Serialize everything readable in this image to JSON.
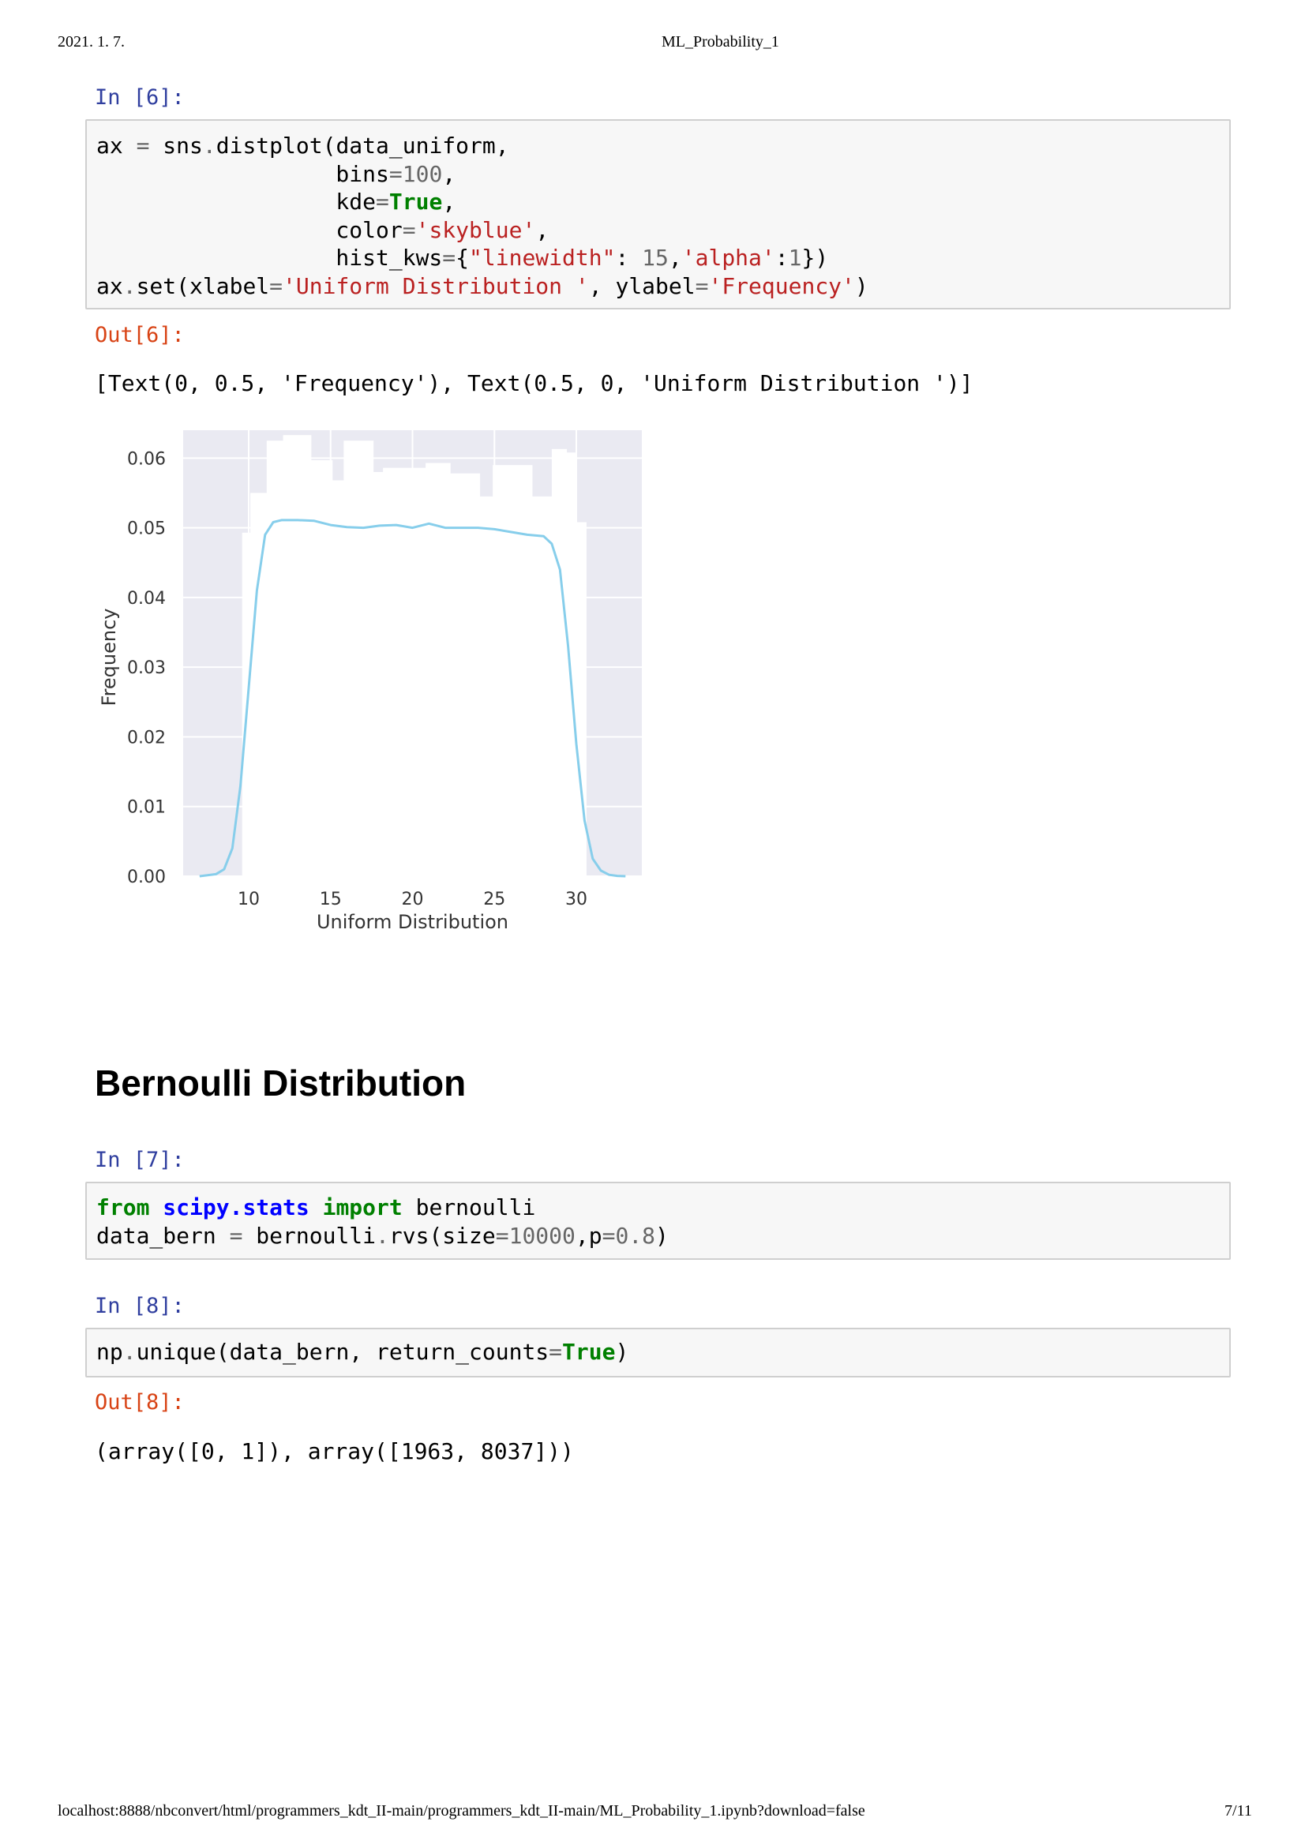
{
  "page_header": {
    "date": "2021. 1. 7.",
    "title": "ML_Probability_1"
  },
  "cells": {
    "in6": {
      "prompt": "In [6]:",
      "code": [
        [
          [
            "ax ",
            ""
          ],
          [
            "=",
            "o"
          ],
          [
            " sns",
            ""
          ],
          [
            ".",
            "o"
          ],
          [
            "distplot(data_uniform,",
            ""
          ]
        ],
        [
          [
            "                  bins",
            ""
          ],
          [
            "=",
            "o"
          ],
          [
            "100",
            "n"
          ],
          [
            ",",
            ""
          ]
        ],
        [
          [
            "                  kde",
            ""
          ],
          [
            "=",
            "o"
          ],
          [
            "True",
            "k"
          ],
          [
            ",",
            ""
          ]
        ],
        [
          [
            "                  color",
            ""
          ],
          [
            "=",
            "o"
          ],
          [
            "'skyblue'",
            "s"
          ],
          [
            ",",
            ""
          ]
        ],
        [
          [
            "                  hist_kws",
            ""
          ],
          [
            "=",
            "o"
          ],
          [
            "{",
            ""
          ],
          [
            "\"linewidth\"",
            "s"
          ],
          [
            ": ",
            ""
          ],
          [
            "15",
            "n"
          ],
          [
            ",",
            ""
          ],
          [
            "'alpha'",
            "s"
          ],
          [
            ":",
            ""
          ],
          [
            "1",
            "n"
          ],
          [
            "})",
            ""
          ]
        ],
        [
          [
            "ax",
            ""
          ],
          [
            ".",
            "o"
          ],
          [
            "set(xlabel",
            ""
          ],
          [
            "=",
            "o"
          ],
          [
            "'Uniform Distribution '",
            "s"
          ],
          [
            ", ylabel",
            ""
          ],
          [
            "=",
            "o"
          ],
          [
            "'Frequency'",
            "s"
          ],
          [
            ")",
            ""
          ]
        ]
      ]
    },
    "out6": {
      "prompt": "Out[6]:",
      "text": "[Text(0, 0.5, 'Frequency'), Text(0.5, 0, 'Uniform Distribution ')]"
    },
    "section_title": "Bernoulli Distribution",
    "in7": {
      "prompt": "In [7]:",
      "code": [
        [
          [
            "from",
            "k"
          ],
          [
            " ",
            ""
          ],
          [
            "scipy.stats",
            "nn"
          ],
          [
            " ",
            ""
          ],
          [
            "import",
            "k"
          ],
          [
            " bernoulli",
            ""
          ]
        ],
        [
          [
            "data_bern ",
            ""
          ],
          [
            "=",
            "o"
          ],
          [
            " bernoulli",
            ""
          ],
          [
            ".",
            "o"
          ],
          [
            "rvs(size",
            ""
          ],
          [
            "=",
            "o"
          ],
          [
            "10000",
            "n"
          ],
          [
            ",p",
            ""
          ],
          [
            "=",
            "o"
          ],
          [
            "0.8",
            "n"
          ],
          [
            ")",
            ""
          ]
        ]
      ]
    },
    "in8": {
      "prompt": "In [8]:",
      "code": [
        [
          [
            "np",
            ""
          ],
          [
            ".",
            "o"
          ],
          [
            "unique(data_bern, return_counts",
            ""
          ],
          [
            "=",
            "o"
          ],
          [
            "True",
            "k"
          ],
          [
            ")",
            ""
          ]
        ]
      ]
    },
    "out8": {
      "prompt": "Out[8]:",
      "text": "(array([0, 1]), array([1963, 8037]))"
    }
  },
  "chart_data": {
    "type": "histogram_kde",
    "xlabel": "Uniform Distribution",
    "ylabel": "Frequency",
    "xlim": [
      6,
      34
    ],
    "ylim": [
      0,
      0.064
    ],
    "xticks": [
      "10",
      "15",
      "20",
      "25",
      "30"
    ],
    "yticks": [
      "0.00",
      "0.01",
      "0.02",
      "0.03",
      "0.04",
      "0.05",
      "0.06"
    ],
    "grid": true,
    "colors": {
      "background": "#eaeaf2",
      "hist": "#ffffff",
      "kde": "#87ceeb",
      "grid": "#ffffff"
    },
    "hist_bins": [
      {
        "x0": 9.6,
        "x1": 10.1,
        "y": 0.0493
      },
      {
        "x0": 10.1,
        "x1": 11.1,
        "y": 0.055
      },
      {
        "x0": 11.1,
        "x1": 12.1,
        "y": 0.0625
      },
      {
        "x0": 12.1,
        "x1": 13.8,
        "y": 0.0633
      },
      {
        "x0": 13.8,
        "x1": 15.1,
        "y": 0.0597
      },
      {
        "x0": 15.1,
        "x1": 15.8,
        "y": 0.0568
      },
      {
        "x0": 15.8,
        "x1": 17.6,
        "y": 0.0625
      },
      {
        "x0": 17.6,
        "x1": 18.2,
        "y": 0.058
      },
      {
        "x0": 18.2,
        "x1": 20.8,
        "y": 0.0586
      },
      {
        "x0": 20.8,
        "x1": 22.3,
        "y": 0.0593
      },
      {
        "x0": 22.3,
        "x1": 24.1,
        "y": 0.0578
      },
      {
        "x0": 24.1,
        "x1": 24.9,
        "y": 0.0545
      },
      {
        "x0": 24.9,
        "x1": 27.3,
        "y": 0.059
      },
      {
        "x0": 27.3,
        "x1": 28.5,
        "y": 0.0545
      },
      {
        "x0": 28.5,
        "x1": 29.4,
        "y": 0.0613
      },
      {
        "x0": 29.4,
        "x1": 30.0,
        "y": 0.0608
      },
      {
        "x0": 30.0,
        "x1": 30.6,
        "y": 0.0508
      }
    ],
    "kde": {
      "x": [
        7.0,
        8.0,
        8.5,
        9.0,
        9.5,
        10.0,
        10.5,
        11.0,
        11.5,
        12.0,
        13.0,
        14.0,
        15.0,
        16.0,
        17.0,
        18.0,
        19.0,
        20.0,
        21.0,
        22.0,
        23.0,
        24.0,
        25.0,
        26.0,
        27.0,
        28.0,
        28.5,
        29.0,
        29.5,
        30.0,
        30.5,
        31.0,
        31.5,
        32.0,
        32.5,
        33.0
      ],
      "y": [
        0.0,
        0.0003,
        0.001,
        0.004,
        0.013,
        0.027,
        0.041,
        0.049,
        0.0508,
        0.0511,
        0.0511,
        0.051,
        0.0504,
        0.0501,
        0.05,
        0.0503,
        0.0504,
        0.05,
        0.0506,
        0.05,
        0.05,
        0.05,
        0.0498,
        0.0494,
        0.049,
        0.0488,
        0.0477,
        0.044,
        0.033,
        0.019,
        0.008,
        0.0025,
        0.0008,
        0.0002,
        5e-05,
        0.0
      ]
    }
  },
  "page_footer": {
    "url": "localhost:8888/nbconvert/html/programmers_kdt_II-main/programmers_kdt_II-main/ML_Probability_1.ipynb?download=false",
    "page": "7/11"
  }
}
